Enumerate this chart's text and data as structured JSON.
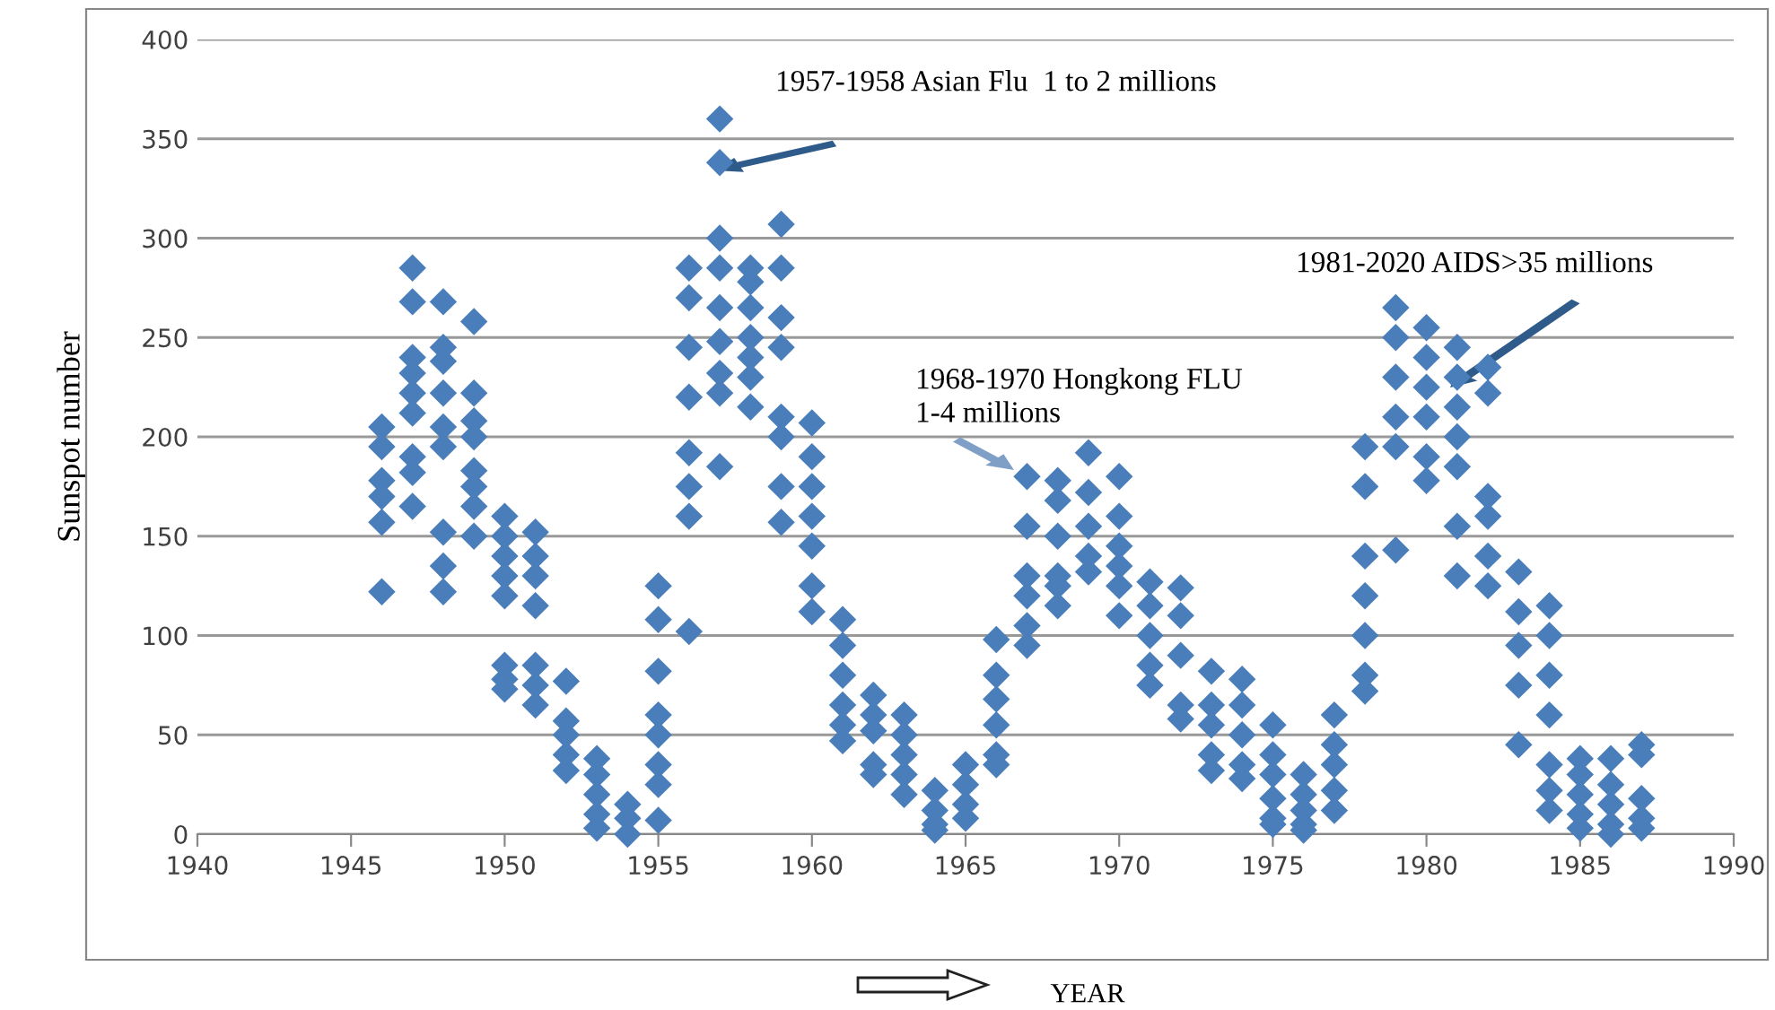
{
  "chart_data": {
    "type": "scatter",
    "xlabel": "YEAR",
    "ylabel": "Sunspot number",
    "xlim": [
      1940,
      1990
    ],
    "xticks": [
      1940,
      1945,
      1950,
      1955,
      1960,
      1965,
      1970,
      1975,
      1980,
      1985,
      1990
    ],
    "ylim": [
      0,
      400
    ],
    "yticks": [
      0,
      50,
      100,
      150,
      200,
      250,
      300,
      350,
      400
    ],
    "grid": "y",
    "marker": "diamond",
    "legend": false,
    "series": [
      {
        "color": "#4a7ebb",
        "x": [
          1946,
          1946,
          1946,
          1946,
          1946,
          1946,
          1947,
          1947,
          1947,
          1947,
          1947,
          1947,
          1947,
          1947,
          1947,
          1948,
          1948,
          1948,
          1948,
          1948,
          1948,
          1948,
          1948,
          1948,
          1949,
          1949,
          1949,
          1949,
          1949,
          1949,
          1949,
          1949,
          1950,
          1950,
          1950,
          1950,
          1950,
          1950,
          1950,
          1950,
          1951,
          1951,
          1951,
          1951,
          1951,
          1951,
          1951,
          1952,
          1952,
          1952,
          1952,
          1952,
          1953,
          1953,
          1953,
          1953,
          1953,
          1954,
          1954,
          1954,
          1955,
          1955,
          1955,
          1955,
          1955,
          1955,
          1955,
          1955,
          1956,
          1956,
          1956,
          1956,
          1956,
          1956,
          1956,
          1956,
          1957,
          1957,
          1957,
          1957,
          1957,
          1957,
          1957,
          1957,
          1957,
          1958,
          1958,
          1958,
          1958,
          1958,
          1958,
          1958,
          1959,
          1959,
          1959,
          1959,
          1959,
          1959,
          1959,
          1959,
          1960,
          1960,
          1960,
          1960,
          1960,
          1960,
          1960,
          1961,
          1961,
          1961,
          1961,
          1961,
          1961,
          1962,
          1962,
          1962,
          1962,
          1962,
          1963,
          1963,
          1963,
          1963,
          1963,
          1964,
          1964,
          1964,
          1964,
          1965,
          1965,
          1965,
          1965,
          1966,
          1966,
          1966,
          1966,
          1966,
          1966,
          1967,
          1967,
          1967,
          1967,
          1967,
          1967,
          1968,
          1968,
          1968,
          1968,
          1968,
          1968,
          1969,
          1969,
          1969,
          1969,
          1969,
          1970,
          1970,
          1970,
          1970,
          1970,
          1970,
          1971,
          1971,
          1971,
          1971,
          1971,
          1972,
          1972,
          1972,
          1972,
          1972,
          1973,
          1973,
          1973,
          1973,
          1973,
          1974,
          1974,
          1974,
          1974,
          1974,
          1975,
          1975,
          1975,
          1975,
          1975,
          1975,
          1976,
          1976,
          1976,
          1976,
          1976,
          1977,
          1977,
          1977,
          1977,
          1977,
          1978,
          1978,
          1978,
          1978,
          1978,
          1978,
          1978,
          1979,
          1979,
          1979,
          1979,
          1979,
          1979,
          1980,
          1980,
          1980,
          1980,
          1980,
          1980,
          1981,
          1981,
          1981,
          1981,
          1981,
          1981,
          1981,
          1982,
          1982,
          1982,
          1982,
          1982,
          1982,
          1983,
          1983,
          1983,
          1983,
          1983,
          1984,
          1984,
          1984,
          1984,
          1984,
          1984,
          1984,
          1985,
          1985,
          1985,
          1985,
          1985,
          1986,
          1986,
          1986,
          1986,
          1986,
          1987,
          1987,
          1987,
          1987,
          1987
        ],
        "values": [
          205,
          195,
          178,
          170,
          157,
          122,
          285,
          268,
          240,
          232,
          222,
          212,
          190,
          182,
          165,
          268,
          245,
          238,
          222,
          205,
          195,
          152,
          135,
          122,
          258,
          222,
          208,
          200,
          183,
          175,
          165,
          150,
          160,
          150,
          140,
          130,
          120,
          85,
          78,
          73,
          152,
          140,
          130,
          115,
          85,
          75,
          65,
          77,
          57,
          50,
          40,
          32,
          38,
          30,
          20,
          10,
          3,
          15,
          8,
          0,
          125,
          108,
          82,
          60,
          50,
          35,
          25,
          7,
          285,
          270,
          245,
          220,
          192,
          175,
          160,
          102,
          360,
          338,
          300,
          285,
          265,
          248,
          232,
          222,
          185,
          285,
          278,
          265,
          250,
          240,
          230,
          215,
          307,
          285,
          260,
          245,
          210,
          200,
          175,
          157,
          207,
          190,
          175,
          160,
          145,
          125,
          112,
          108,
          95,
          80,
          65,
          55,
          47,
          70,
          60,
          52,
          35,
          30,
          60,
          50,
          40,
          30,
          20,
          22,
          12,
          5,
          2,
          35,
          25,
          15,
          8,
          98,
          80,
          68,
          55,
          40,
          35,
          180,
          155,
          130,
          120,
          105,
          95,
          178,
          168,
          150,
          130,
          125,
          115,
          192,
          172,
          155,
          140,
          132,
          180,
          160,
          145,
          135,
          125,
          110,
          127,
          115,
          100,
          85,
          75,
          124,
          110,
          90,
          65,
          58,
          82,
          65,
          55,
          40,
          32,
          78,
          65,
          50,
          35,
          28,
          55,
          40,
          30,
          18,
          8,
          5,
          30,
          20,
          12,
          5,
          2,
          60,
          45,
          35,
          22,
          12,
          195,
          175,
          140,
          120,
          100,
          80,
          72,
          265,
          250,
          230,
          210,
          195,
          143,
          255,
          240,
          225,
          210,
          190,
          178,
          245,
          230,
          215,
          200,
          185,
          155,
          130,
          235,
          222,
          170,
          160,
          140,
          125,
          132,
          112,
          95,
          75,
          45,
          115,
          100,
          80,
          60,
          35,
          22,
          12,
          38,
          30,
          20,
          10,
          3,
          38,
          25,
          15,
          5,
          0,
          45,
          40,
          18,
          8,
          3
        ]
      }
    ],
    "annotations": [
      "1957-1958 Asian Flu  1 to 2 millions",
      "1968-1970 Hongkong FLU\n1-4 millions",
      "1981-2020 AIDS>35 millions"
    ]
  }
}
